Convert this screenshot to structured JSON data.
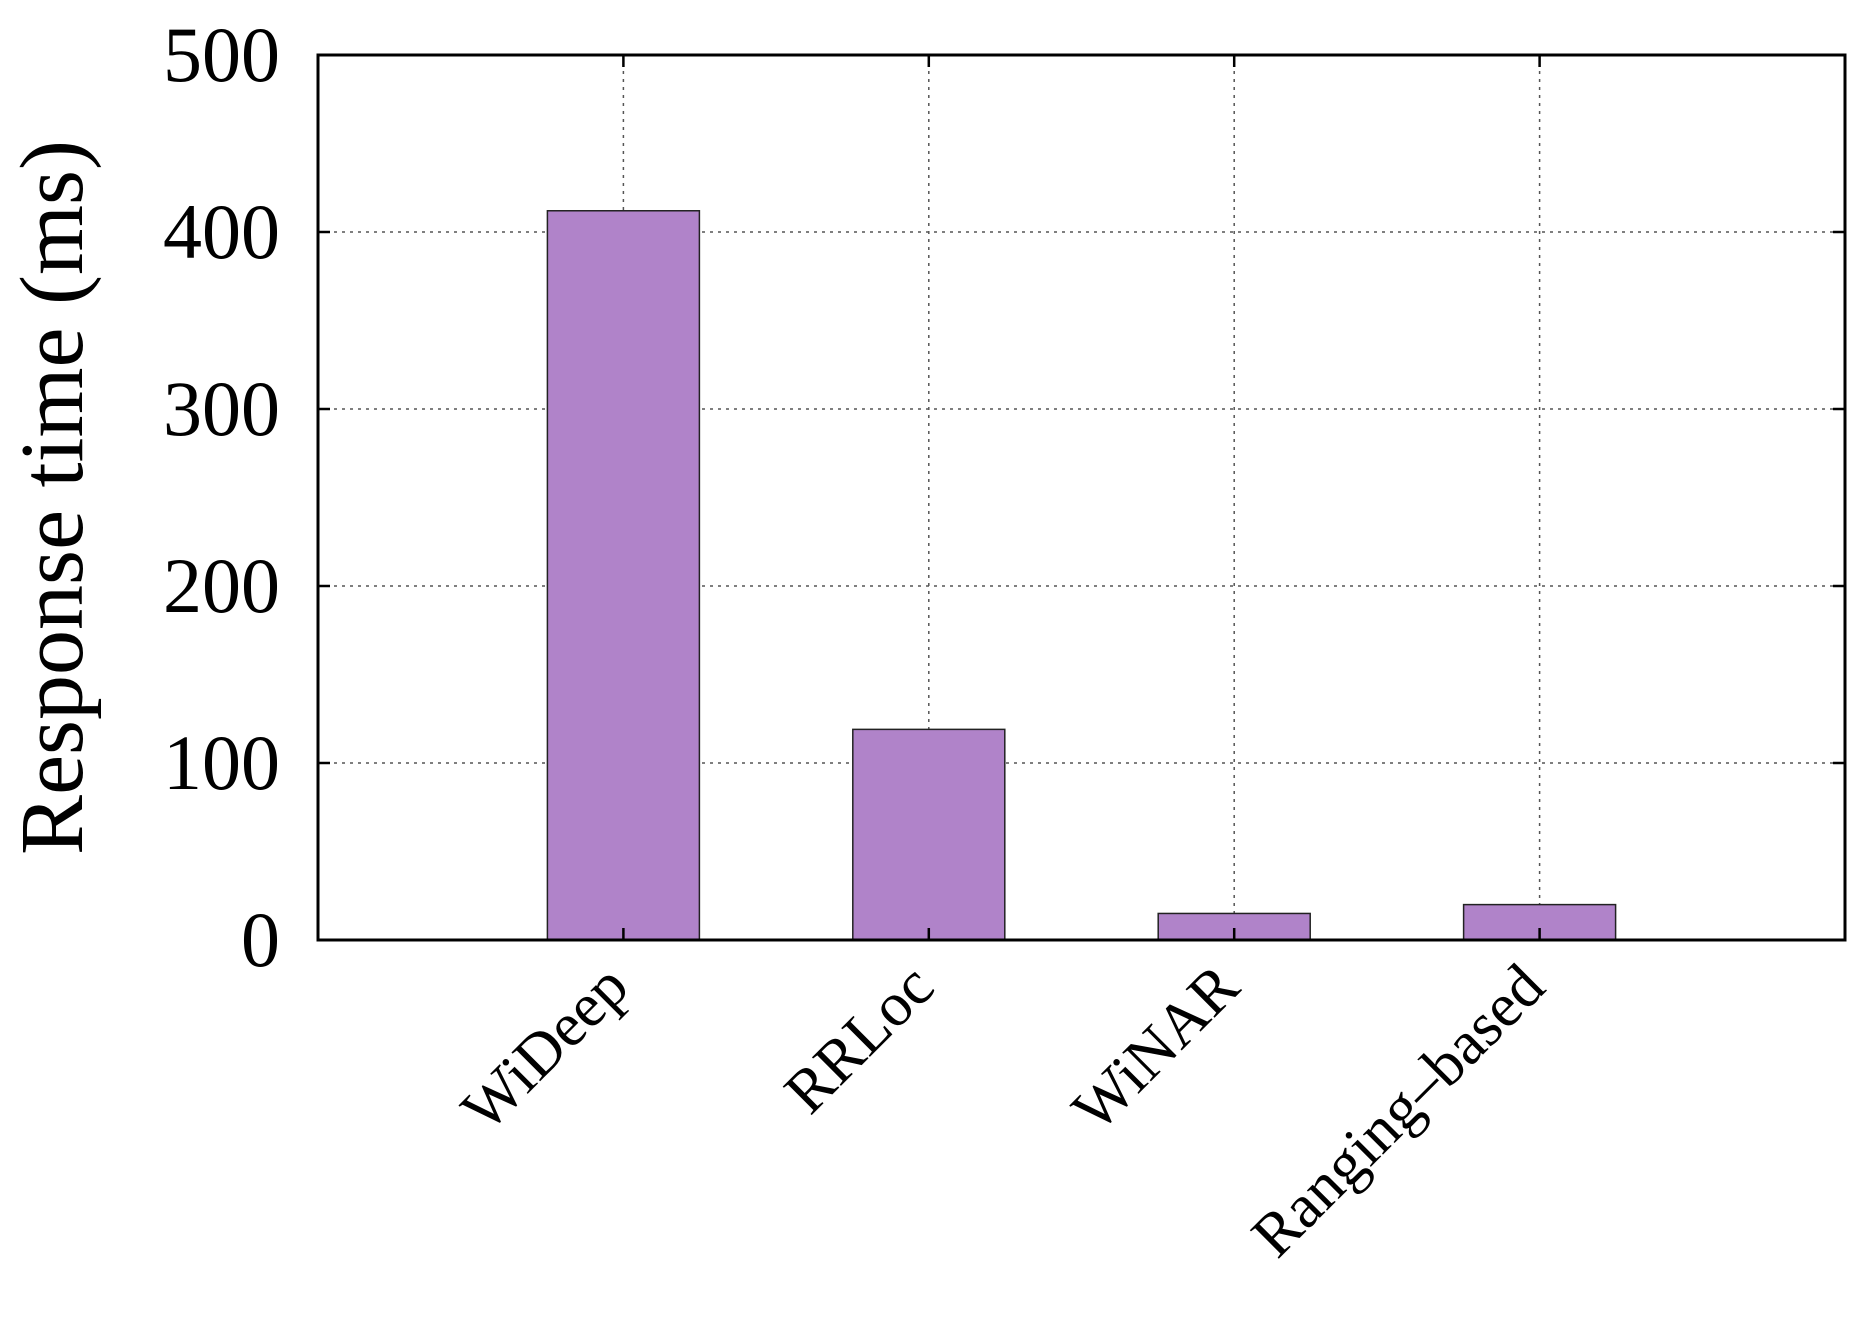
{
  "chart_data": {
    "type": "bar",
    "title": "",
    "xlabel": "",
    "ylabel": "Response time (ms)",
    "categories": [
      "WiDeep",
      "RRLoc",
      "WiNAR",
      "Ranging–based"
    ],
    "values": [
      412,
      119,
      15,
      20
    ],
    "ylim": [
      0,
      500
    ],
    "yticks": [
      0,
      100,
      200,
      300,
      400,
      500
    ],
    "grid": true,
    "legend": "none",
    "bar_color": "#b083c9"
  }
}
